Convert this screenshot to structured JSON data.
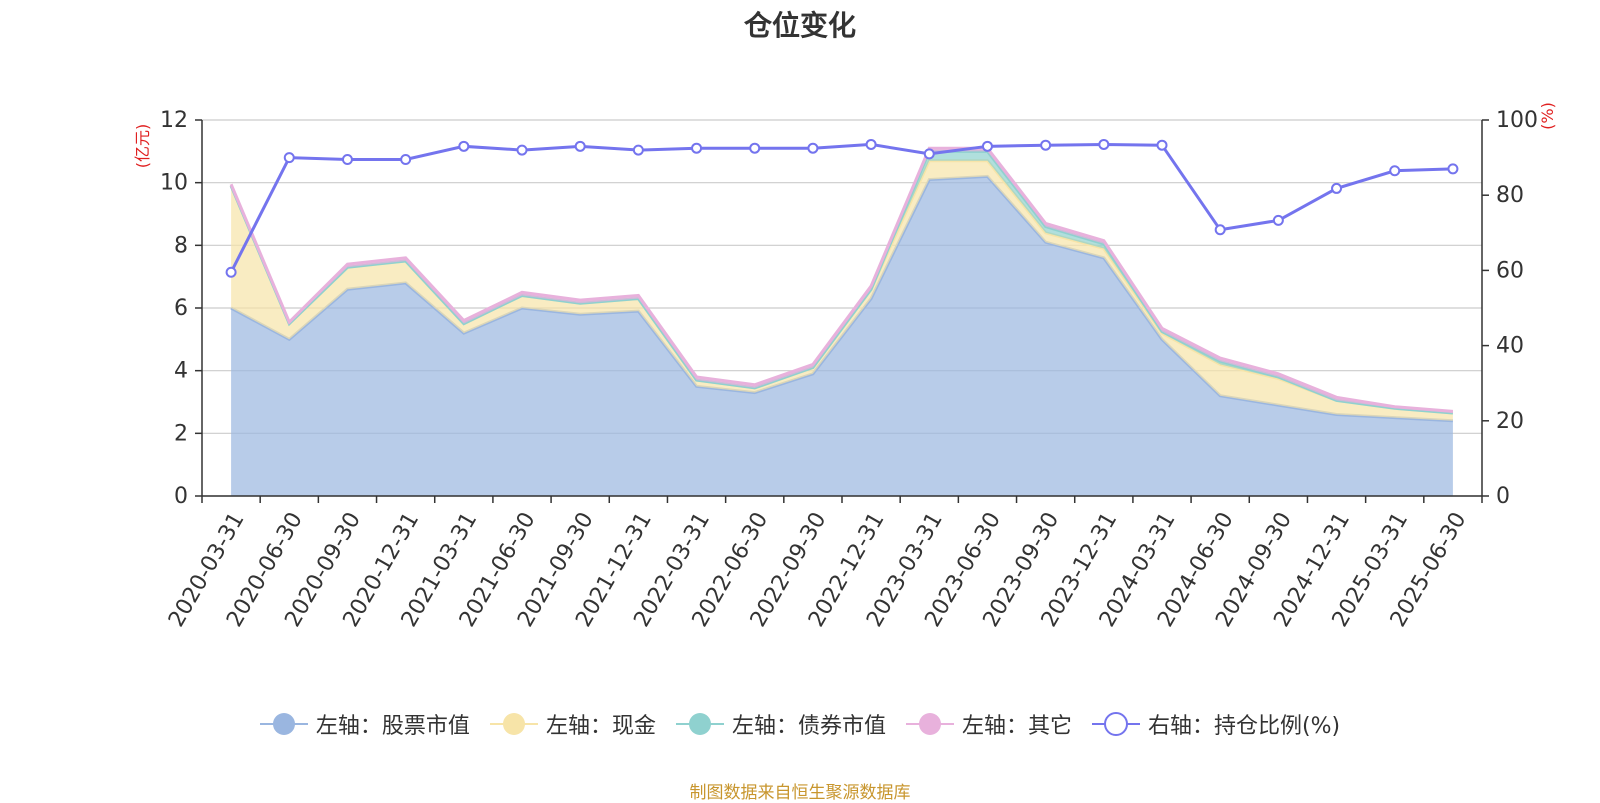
{
  "title": "仓位变化",
  "source": "制图数据来自恒生聚源数据库",
  "chart_data": {
    "type": "area",
    "categories": [
      "2020-03-31",
      "2020-06-30",
      "2020-09-30",
      "2020-12-31",
      "2021-03-31",
      "2021-06-30",
      "2021-09-30",
      "2021-12-31",
      "2022-03-31",
      "2022-06-30",
      "2022-09-30",
      "2022-12-31",
      "2023-03-31",
      "2023-06-30",
      "2023-09-30",
      "2023-12-31",
      "2024-03-31",
      "2024-06-30",
      "2024-09-30",
      "2024-12-31",
      "2025-03-31",
      "2025-06-30"
    ],
    "left_axis": {
      "unit": "(亿元)",
      "ylim": [
        0,
        12
      ],
      "ticks": [
        "0",
        "2",
        "4",
        "6",
        "8",
        "10",
        "12"
      ]
    },
    "right_axis": {
      "unit": "(%)",
      "ylim": [
        0,
        100
      ],
      "ticks": [
        "0",
        "20",
        "40",
        "60",
        "80",
        "100"
      ]
    },
    "stacked_series": [
      {
        "name": "左轴：股票市值",
        "color": "#9ab6e0",
        "values": [
          6.0,
          5.0,
          6.6,
          6.8,
          5.2,
          6.0,
          5.8,
          5.9,
          3.5,
          3.3,
          3.9,
          6.3,
          10.1,
          10.2,
          8.1,
          7.6,
          5.0,
          3.2,
          2.9,
          2.6,
          2.5,
          2.4
        ]
      },
      {
        "name": "左轴：现金",
        "color": "#f7e4a8",
        "values": [
          3.9,
          0.5,
          0.7,
          0.7,
          0.3,
          0.4,
          0.35,
          0.4,
          0.2,
          0.15,
          0.2,
          0.3,
          0.6,
          0.5,
          0.3,
          0.3,
          0.2,
          1.0,
          0.85,
          0.45,
          0.3,
          0.25
        ]
      },
      {
        "name": "左轴：债券市值",
        "color": "#8fd1cf",
        "values": [
          0,
          0,
          0,
          0,
          0,
          0,
          0,
          0,
          0,
          0,
          0,
          0,
          0.3,
          0.3,
          0.2,
          0.15,
          0.05,
          0.1,
          0.05,
          0,
          0,
          0
        ]
      },
      {
        "name": "左轴：其它",
        "color": "#e8b1dc",
        "values": [
          0.05,
          0.05,
          0.1,
          0.1,
          0.1,
          0.1,
          0.1,
          0.1,
          0.1,
          0.1,
          0.1,
          0.1,
          0.1,
          0.1,
          0.1,
          0.1,
          0.1,
          0.1,
          0.1,
          0.1,
          0.05,
          0.05
        ]
      }
    ],
    "line_series": {
      "name": "右轴：持仓比例(%)",
      "color": "#7474ee",
      "values": [
        59.5,
        90.0,
        89.5,
        89.5,
        93.0,
        92.0,
        93.0,
        92.0,
        92.5,
        92.5,
        92.5,
        93.5,
        91.0,
        93.0,
        93.3,
        93.5,
        93.3,
        70.8,
        73.3,
        81.8,
        86.5,
        87.0
      ]
    },
    "legend_position": "bottom",
    "grid": true
  }
}
